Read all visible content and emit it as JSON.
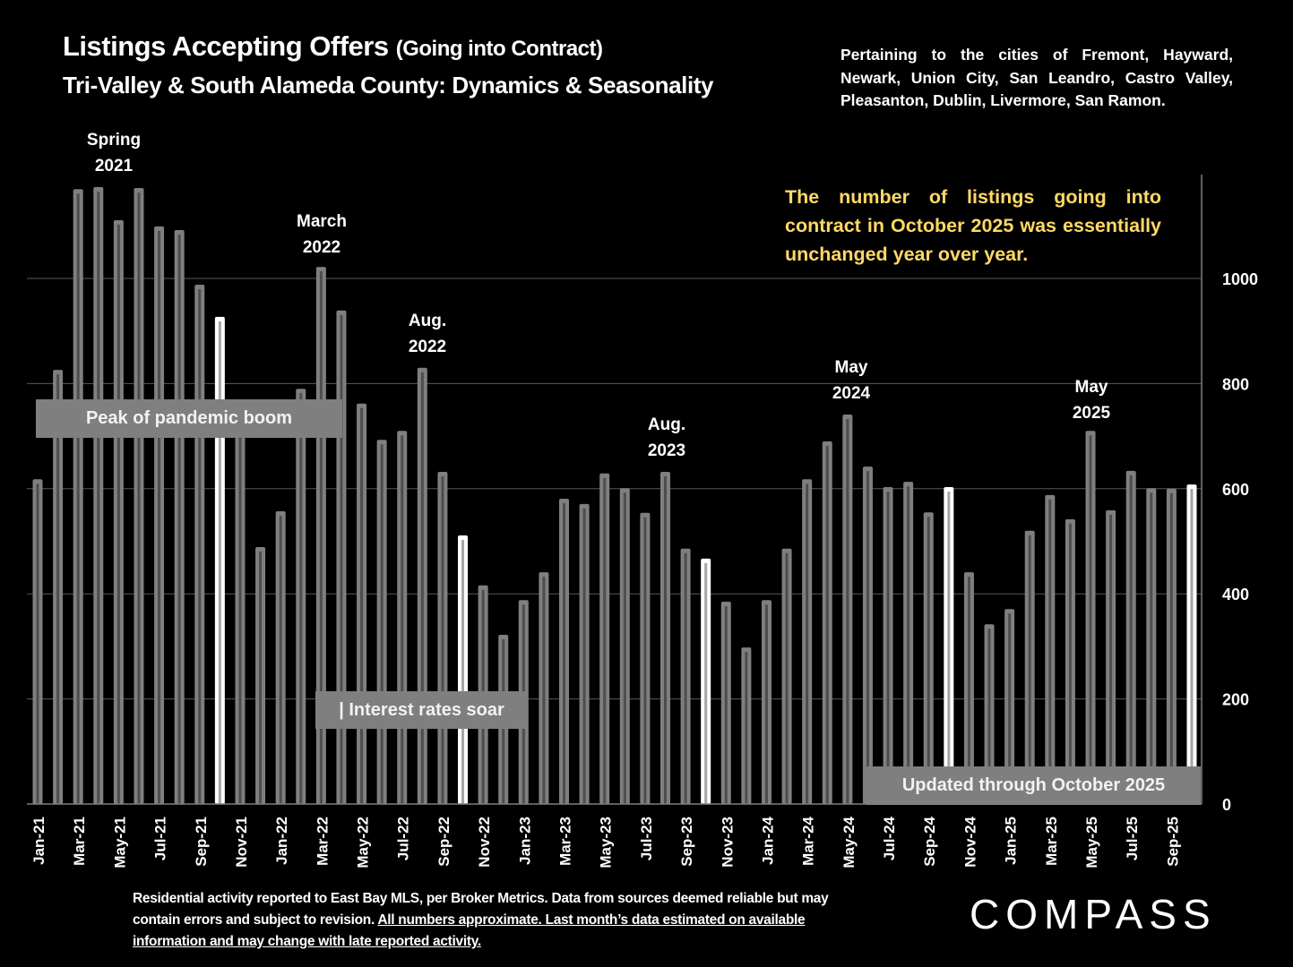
{
  "header": {
    "title_main": "Listings Accepting Offers",
    "title_paren": "(Going into Contract)",
    "subtitle": "Tri-Valley & South Alameda County: Dynamics & Seasonality",
    "cities_note": "Pertaining to the cities of Fremont, Hayward, Newark, Union City, San Leandro, Castro Valley, Pleasanton, Dublin, Livermore, San Ramon."
  },
  "callout": {
    "text": "The number of listings going into contract in October 2025 was essentially unchanged year over year.",
    "color": "#ffd966"
  },
  "annotations": {
    "spring_2021": [
      "Spring",
      "2021"
    ],
    "march_2022": [
      "March",
      "2022"
    ],
    "aug_2022": [
      "Aug.",
      "2022"
    ],
    "aug_2023": [
      "Aug.",
      "2023"
    ],
    "may_2024": [
      "May",
      "2024"
    ],
    "may_2025": [
      "May",
      "2025"
    ]
  },
  "boxes": {
    "peak": "Peak of pandemic boom",
    "rates": "| Interest rates soar",
    "updated": "Updated through October 2025"
  },
  "footnote": {
    "plain": "Residential activity reported to East Bay MLS, per Broker Metrics. Data from sources deemed reliable but may contain errors and subject to revision.  ",
    "underlined": "All numbers approximate. Last month’s data estimated on available information and may change with late reported activity."
  },
  "logo": {
    "text": "COMPASS"
  },
  "colors": {
    "background": "#000000",
    "bar": "#7f7f7f",
    "bar_inner": "#4d4d4d",
    "highlight_bar": "#ffffff",
    "gridline": "#595959",
    "label_box": "#7f7f7f"
  },
  "chart_data": {
    "type": "bar",
    "title": "Listings Accepting Offers (Going into Contract)",
    "subtitle": "Tri-Valley & South Alameda County: Dynamics & Seasonality",
    "xlabel": "",
    "ylabel": "",
    "ylim": [
      0,
      1200
    ],
    "yticks": [
      0,
      200,
      400,
      600,
      800,
      1000
    ],
    "y_axis_side": "right",
    "grid": true,
    "legend": "none",
    "categories": [
      "Jan-21",
      "Feb-21",
      "Mar-21",
      "Apr-21",
      "May-21",
      "Jun-21",
      "Jul-21",
      "Aug-21",
      "Sep-21",
      "Oct-21",
      "Nov-21",
      "Dec-21",
      "Jan-22",
      "Feb-22",
      "Mar-22",
      "Apr-22",
      "May-22",
      "Jun-22",
      "Jul-22",
      "Aug-22",
      "Sep-22",
      "Oct-22",
      "Nov-22",
      "Dec-22",
      "Jan-23",
      "Feb-23",
      "Mar-23",
      "Apr-23",
      "May-23",
      "Jun-23",
      "Jul-23",
      "Aug-23",
      "Sep-23",
      "Oct-23",
      "Nov-23",
      "Dec-23",
      "Jan-24",
      "Feb-24",
      "Mar-24",
      "Apr-24",
      "May-24",
      "Jun-24",
      "Jul-24",
      "Aug-24",
      "Sep-24",
      "Oct-24",
      "Nov-24",
      "Dec-24",
      "Jan-25",
      "Feb-25",
      "Mar-25",
      "Apr-25",
      "May-25",
      "Jun-25",
      "Jul-25",
      "Aug-25",
      "Sep-25",
      "Oct-25"
    ],
    "tick_labels": [
      "Jan-21",
      "Mar-21",
      "May-21",
      "Jul-21",
      "Sep-21",
      "Nov-21",
      "Jan-22",
      "Mar-22",
      "May-22",
      "Jul-22",
      "Sep-22",
      "Nov-22",
      "Jan-23",
      "Mar-23",
      "May-23",
      "Jul-23",
      "Sep-23",
      "Nov-23",
      "Jan-24",
      "Mar-24",
      "May-24",
      "Jul-24",
      "Sep-24",
      "Nov-24",
      "Jan-25",
      "Mar-25",
      "May-25",
      "Jul-25",
      "Sep-25"
    ],
    "values": [
      618,
      826,
      1170,
      1174,
      1111,
      1172,
      1099,
      1092,
      988,
      927,
      730,
      489,
      557,
      790,
      1022,
      939,
      762,
      693,
      710,
      830,
      632,
      511,
      416,
      322,
      388,
      441,
      581,
      571,
      629,
      601,
      554,
      632,
      486,
      467,
      385,
      298,
      388,
      486,
      618,
      690,
      741,
      642,
      603,
      613,
      555,
      603,
      441,
      342,
      371,
      520,
      588,
      542,
      710,
      559,
      634,
      601,
      600,
      608
    ],
    "highlighted": [
      "Oct-21",
      "Oct-22",
      "Oct-23",
      "Oct-24",
      "Oct-25"
    ]
  }
}
